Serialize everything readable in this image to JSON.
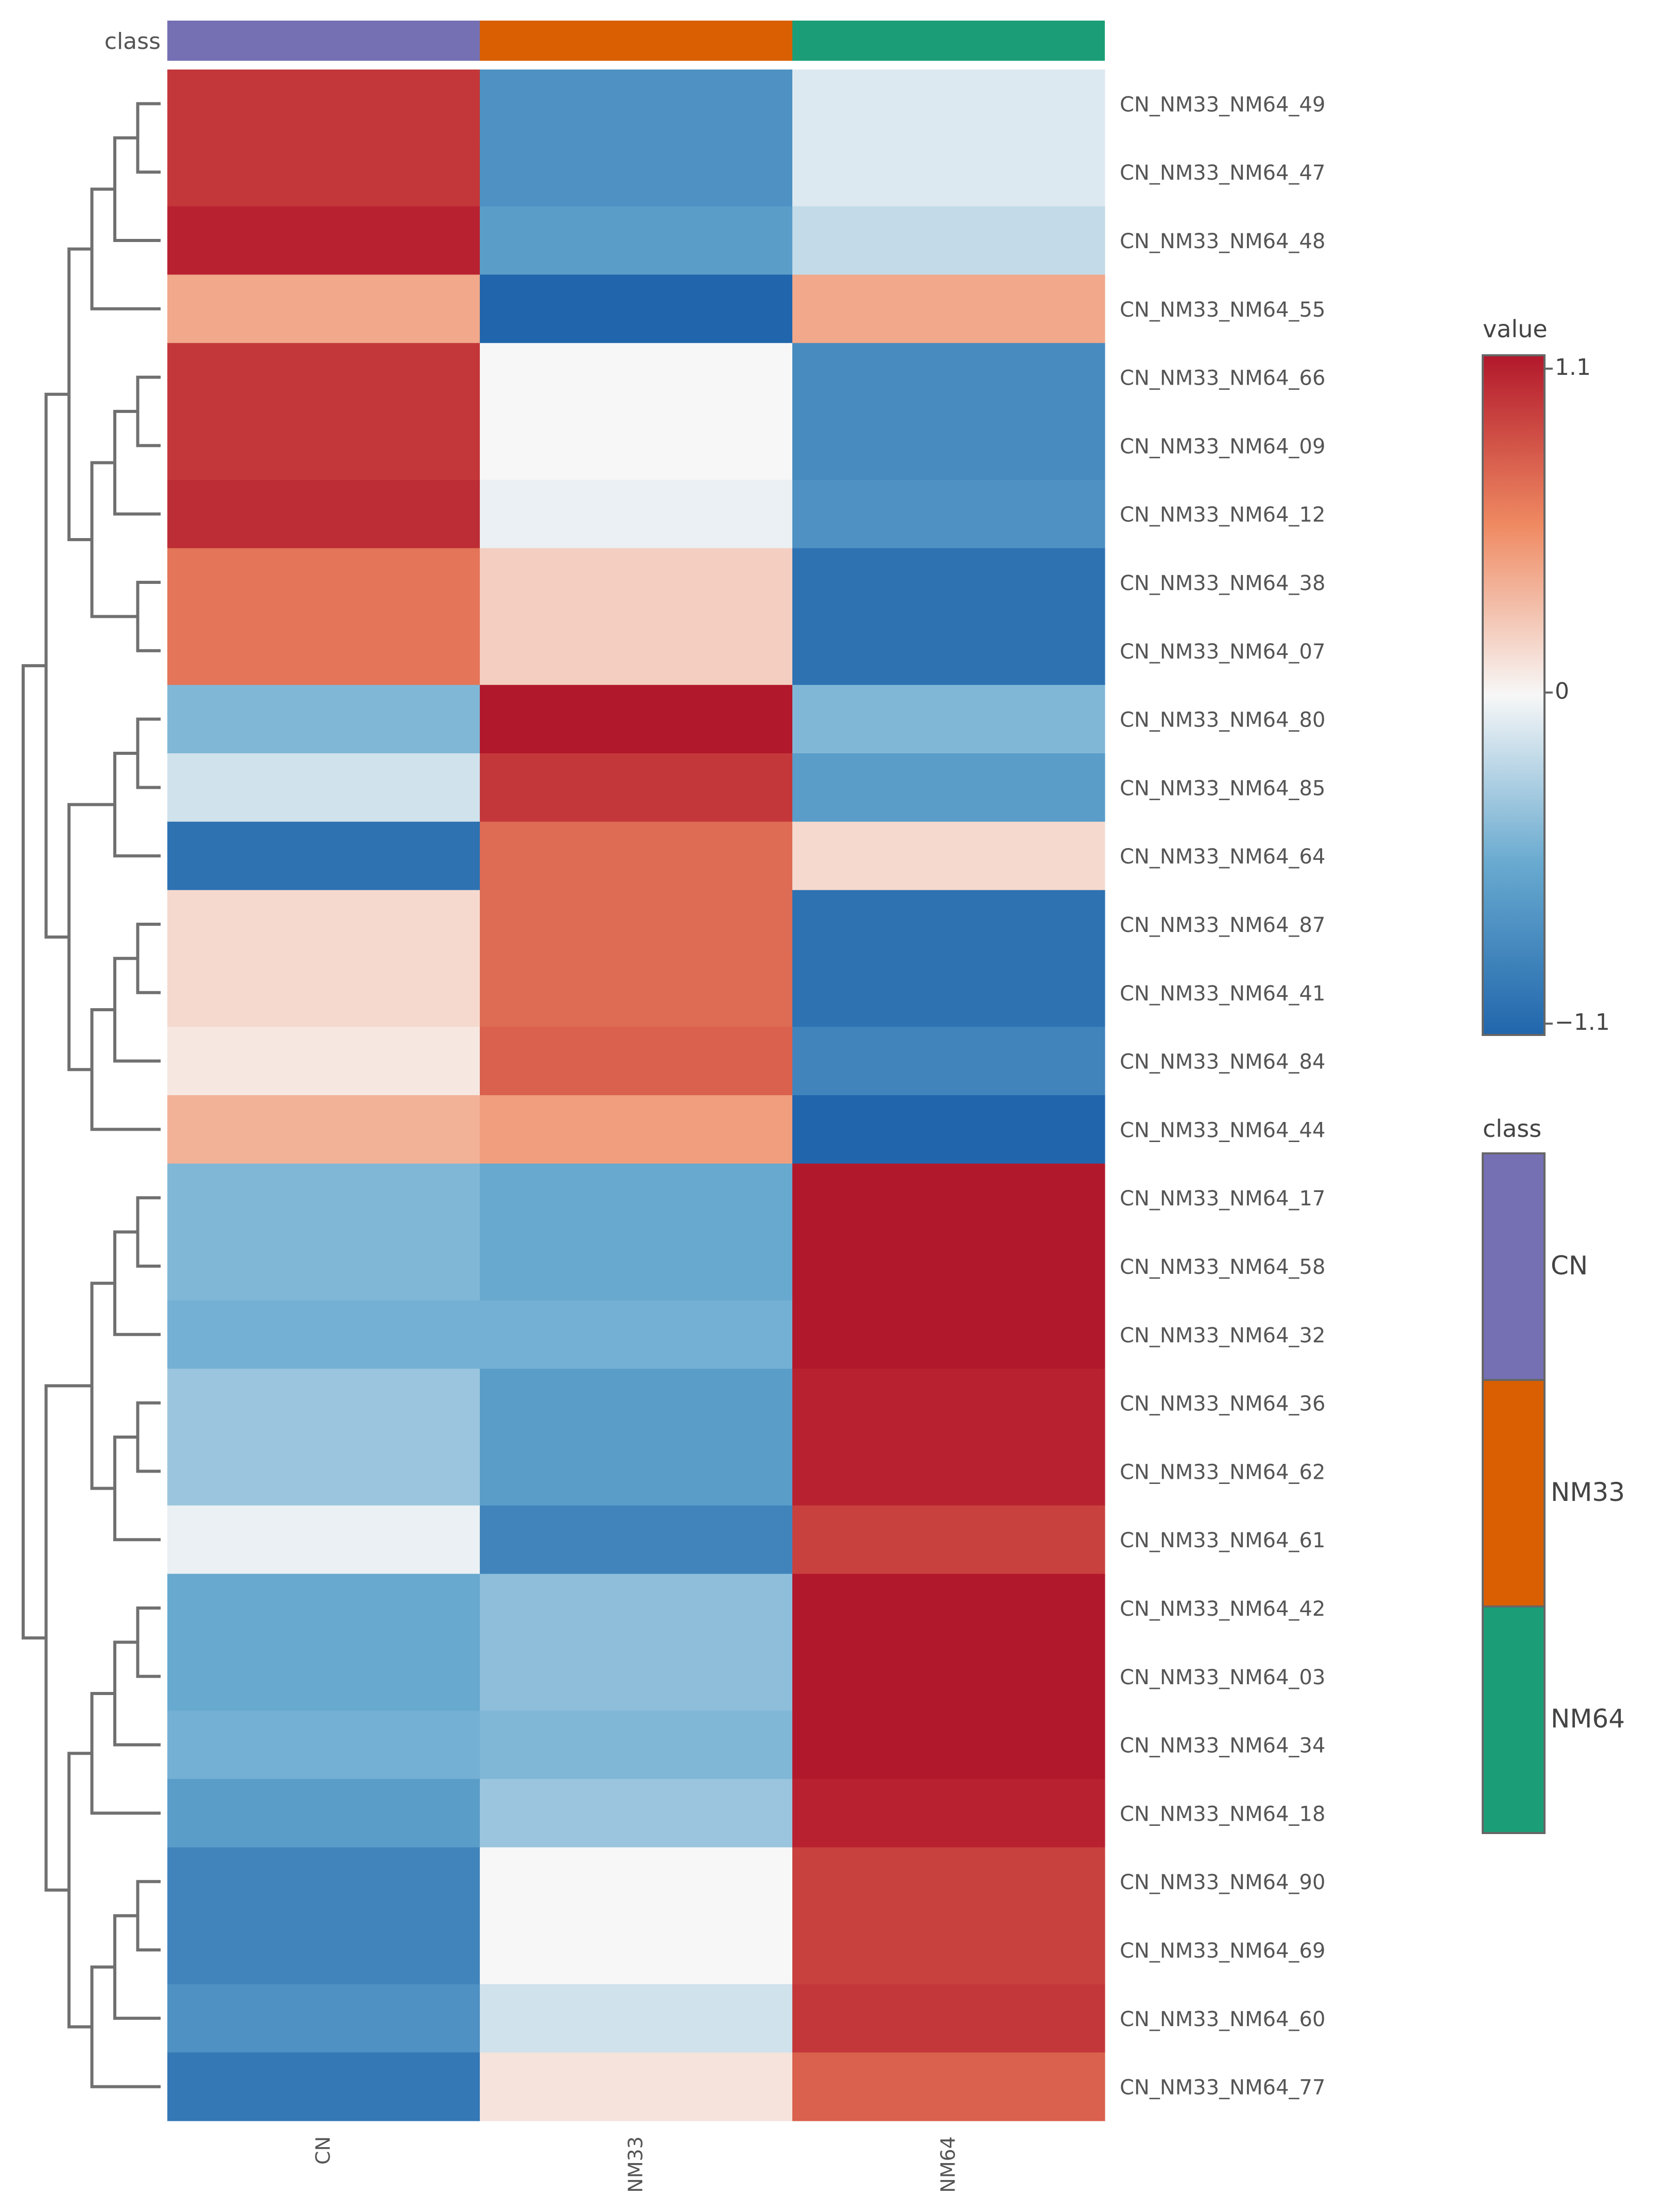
{
  "chart_data": {
    "type": "heatmap",
    "title": "",
    "columns": [
      "CN",
      "NM33",
      "NM64"
    ],
    "class_bar": {
      "label": "class",
      "classes": [
        "CN",
        "NM33",
        "NM64"
      ],
      "colors": [
        "#7570b3",
        "#d95f02",
        "#1b9e77"
      ]
    },
    "rows": [
      "CN_NM33_NM64_49",
      "CN_NM33_NM64_47",
      "CN_NM33_NM64_48",
      "CN_NM33_NM64_55",
      "CN_NM33_NM64_66",
      "CN_NM33_NM64_09",
      "CN_NM33_NM64_12",
      "CN_NM33_NM64_38",
      "CN_NM33_NM64_07",
      "CN_NM33_NM64_80",
      "CN_NM33_NM64_85",
      "CN_NM33_NM64_64",
      "CN_NM33_NM64_87",
      "CN_NM33_NM64_41",
      "CN_NM33_NM64_84",
      "CN_NM33_NM64_44",
      "CN_NM33_NM64_17",
      "CN_NM33_NM64_58",
      "CN_NM33_NM64_32",
      "CN_NM33_NM64_36",
      "CN_NM33_NM64_62",
      "CN_NM33_NM64_61",
      "CN_NM33_NM64_42",
      "CN_NM33_NM64_03",
      "CN_NM33_NM64_34",
      "CN_NM33_NM64_18",
      "CN_NM33_NM64_90",
      "CN_NM33_NM64_69",
      "CN_NM33_NM64_60",
      "CN_NM33_NM64_77"
    ],
    "values": [
      [
        0.95,
        -0.75,
        -0.1
      ],
      [
        0.95,
        -0.75,
        -0.1
      ],
      [
        1.05,
        -0.65,
        -0.2
      ],
      [
        0.4,
        -1.1,
        0.4
      ],
      [
        0.95,
        0.0,
        -0.8
      ],
      [
        0.95,
        0.0,
        -0.8
      ],
      [
        1.0,
        -0.05,
        -0.75
      ],
      [
        0.65,
        0.2,
        -1.0
      ],
      [
        0.65,
        0.2,
        -1.0
      ],
      [
        -0.45,
        1.1,
        -0.45
      ],
      [
        -0.15,
        0.95,
        -0.65
      ],
      [
        -1.0,
        0.7,
        0.15
      ],
      [
        0.15,
        0.7,
        -1.0
      ],
      [
        0.15,
        0.7,
        -1.0
      ],
      [
        0.08,
        0.75,
        -0.85
      ],
      [
        0.35,
        0.45,
        -1.1
      ],
      [
        -0.45,
        -0.55,
        1.1
      ],
      [
        -0.45,
        -0.55,
        1.1
      ],
      [
        -0.5,
        -0.5,
        1.1
      ],
      [
        -0.35,
        -0.65,
        1.05
      ],
      [
        -0.35,
        -0.65,
        1.05
      ],
      [
        -0.05,
        -0.85,
        0.9
      ],
      [
        -0.55,
        -0.4,
        1.1
      ],
      [
        -0.55,
        -0.4,
        1.1
      ],
      [
        -0.5,
        -0.45,
        1.1
      ],
      [
        -0.65,
        -0.35,
        1.05
      ],
      [
        -0.85,
        0.0,
        0.9
      ],
      [
        -0.85,
        0.0,
        0.9
      ],
      [
        -0.75,
        -0.15,
        0.95
      ],
      [
        -0.95,
        0.1,
        0.75
      ]
    ],
    "color_scale": {
      "title": "value",
      "min": -1.1,
      "max": 1.1,
      "tick_labels": [
        "1.1",
        "0",
        "−1.1"
      ]
    },
    "class_legend": {
      "title": "class",
      "entries": [
        "CN",
        "NM33",
        "NM64"
      ]
    }
  }
}
